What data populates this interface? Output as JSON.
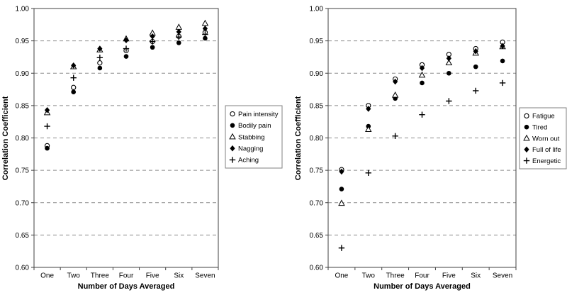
{
  "chart_data": [
    {
      "type": "scatter",
      "title": "",
      "xlabel": "Number of Days Averaged",
      "ylabel": "Correlation Coefficient",
      "categories": [
        "One",
        "Two",
        "Three",
        "Four",
        "Five",
        "Six",
        "Seven"
      ],
      "ylim": [
        0.6,
        1.0
      ],
      "ytick_step": 0.05,
      "ytick_labels": [
        "0.60",
        "0.65",
        "0.70",
        "0.75",
        "0.80",
        "0.85",
        "0.90",
        "0.95",
        "1.00"
      ],
      "grid": "horizontal-dashed",
      "legend_position": "right-center",
      "series": [
        {
          "name": "Pain intensity",
          "marker": "open-circle",
          "values": [
            0.788,
            0.878,
            0.916,
            0.935,
            0.949,
            0.957,
            0.963
          ]
        },
        {
          "name": "Bodily pain",
          "marker": "filled-circle",
          "values": [
            0.784,
            0.871,
            0.908,
            0.926,
            0.94,
            0.947,
            0.954
          ]
        },
        {
          "name": "Stabbing",
          "marker": "open-triangle",
          "values": [
            0.839,
            0.91,
            0.936,
            0.953,
            0.962,
            0.971,
            0.977
          ]
        },
        {
          "name": "Nagging",
          "marker": "filled-diamond",
          "values": [
            0.843,
            0.912,
            0.938,
            0.951,
            0.957,
            0.964,
            0.969
          ]
        },
        {
          "name": "Aching",
          "marker": "plus",
          "values": [
            0.818,
            0.893,
            0.924,
            0.938,
            0.949,
            0.956,
            0.96
          ]
        }
      ]
    },
    {
      "type": "scatter",
      "title": "",
      "xlabel": "Number of Days Averaged",
      "ylabel": "Correlation Coefficient",
      "categories": [
        "One",
        "Two",
        "Three",
        "Four",
        "Five",
        "Six",
        "Seven"
      ],
      "ylim": [
        0.6,
        1.0
      ],
      "ytick_step": 0.05,
      "ytick_labels": [
        "0.60",
        "0.65",
        "0.70",
        "0.75",
        "0.80",
        "0.85",
        "0.90",
        "0.95",
        "1.00"
      ],
      "grid": "horizontal-dashed",
      "legend_position": "right-center",
      "series": [
        {
          "name": "Fatigue",
          "marker": "open-circle",
          "values": [
            0.751,
            0.85,
            0.891,
            0.913,
            0.929,
            0.938,
            0.948
          ]
        },
        {
          "name": "Tired",
          "marker": "filled-circle",
          "values": [
            0.721,
            0.818,
            0.861,
            0.885,
            0.9,
            0.91,
            0.919
          ]
        },
        {
          "name": "Worn out",
          "marker": "open-triangle",
          "values": [
            0.699,
            0.813,
            0.866,
            0.897,
            0.916,
            0.931,
            0.941
          ]
        },
        {
          "name": "Full of life",
          "marker": "filled-diamond",
          "values": [
            0.748,
            0.845,
            0.887,
            0.908,
            0.923,
            0.934,
            0.942
          ]
        },
        {
          "name": "Energetic",
          "marker": "plus",
          "values": [
            0.63,
            0.746,
            0.803,
            0.836,
            0.857,
            0.873,
            0.885
          ]
        }
      ]
    }
  ],
  "colors": {
    "marker": "#000000",
    "grid": "#8c8c8c",
    "axis": "#404040",
    "text": "#000000",
    "background": "#ffffff",
    "legend_border": "#808080"
  }
}
